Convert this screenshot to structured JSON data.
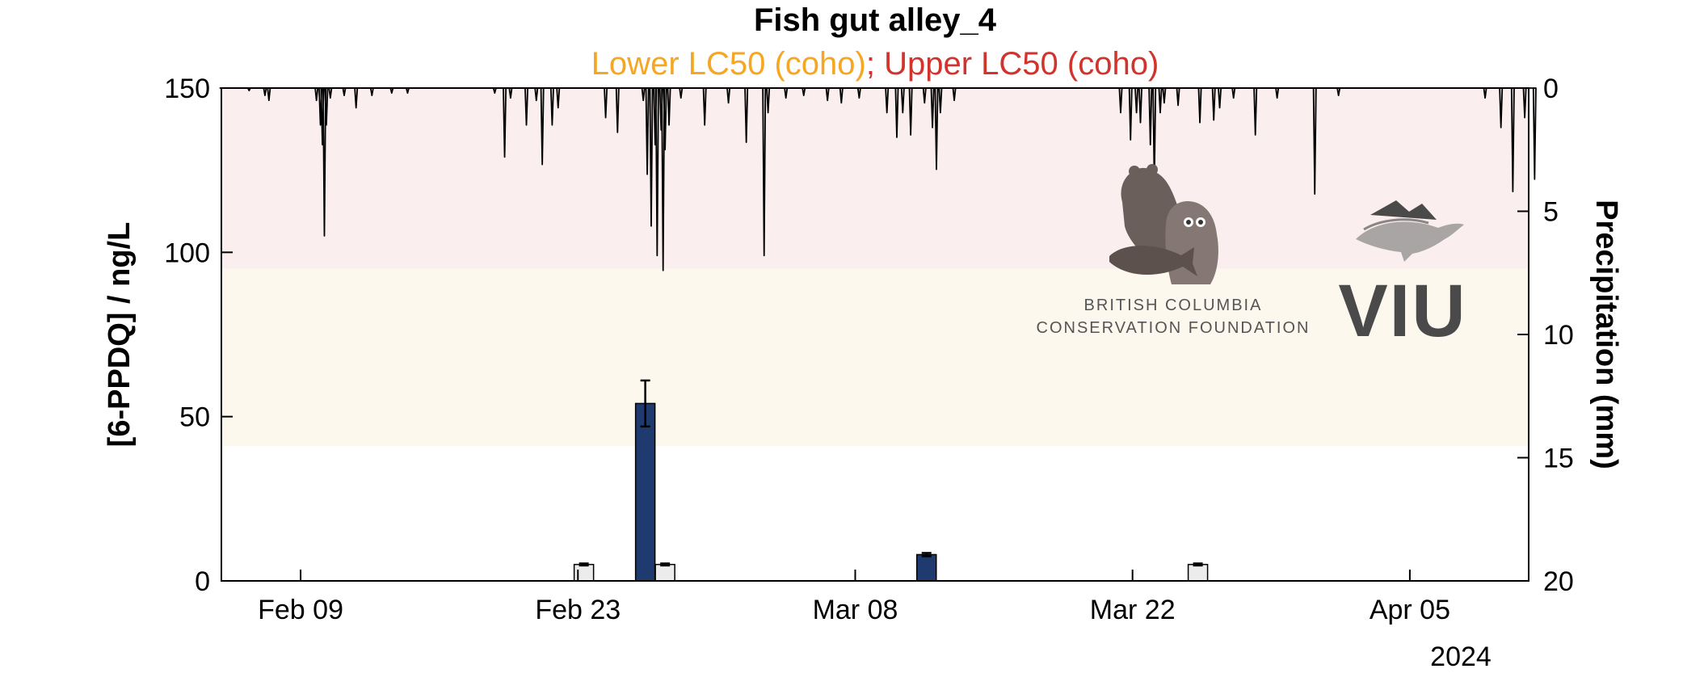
{
  "chart_data": {
    "type": "bar",
    "title": "Fish gut alley_4",
    "subtitle": {
      "lower_label": "Lower LC50 (coho)",
      "separator": "; ",
      "upper_label": "Upper LC50 (coho)",
      "lower_color": "#f5a623",
      "upper_color": "#d0342c"
    },
    "ylabel": "[6-PPDQ] / ng/L",
    "y2label": "Precipitation (mm)",
    "year_label": "2024",
    "ylim": [
      0,
      150
    ],
    "y2lim": [
      0,
      20
    ],
    "y2_reversed": true,
    "yticks": [
      "0",
      "50",
      "100",
      "150"
    ],
    "y2ticks": [
      "0",
      "5",
      "10",
      "15",
      "20"
    ],
    "x_range_days": [
      "2024-02-05",
      "2024-04-11"
    ],
    "xticks": [
      {
        "date": "2024-02-09",
        "label": "Feb 09"
      },
      {
        "date": "2024-02-23",
        "label": "Feb 23"
      },
      {
        "date": "2024-03-08",
        "label": "Mar 08"
      },
      {
        "date": "2024-03-22",
        "label": "Mar 22"
      },
      {
        "date": "2024-04-05",
        "label": "Apr 05"
      }
    ],
    "bands": [
      {
        "name": "Lower LC50 (coho)",
        "y0": 41,
        "y1": 95,
        "color": "#fdf8ee"
      },
      {
        "name": "Upper LC50 (coho)",
        "y0": 95,
        "y1": 150,
        "color": "#fbeeee"
      }
    ],
    "bars": [
      {
        "date": "2024-02-26.4",
        "value": 54,
        "error": 7,
        "color": "#1f3a6e"
      },
      {
        "date": "2024-03-11.6",
        "value": 8,
        "error": 0.5,
        "color": "#1f3a6e"
      },
      {
        "date": "2024-02-23.3",
        "value": 5,
        "error": 0.3,
        "color": "#ececec"
      },
      {
        "date": "2024-02-27.4",
        "value": 5,
        "error": 0.3,
        "color": "#ececec"
      },
      {
        "date": "2024-03-25.3",
        "value": 5,
        "error": 0.3,
        "color": "#ececec"
      }
    ],
    "precipitation_series": {
      "name": "Precipitation (mm)",
      "color": "#000000",
      "points": [
        [
          "2024-02-05.0",
          0.0
        ],
        [
          "2024-02-06.4",
          0.1
        ],
        [
          "2024-02-07.2",
          0.3
        ],
        [
          "2024-02-07.4",
          0.5
        ],
        [
          "2024-02-09.8",
          0.5
        ],
        [
          "2024-02-10.0",
          1.5
        ],
        [
          "2024-02-10.1",
          2.3
        ],
        [
          "2024-02-10.2",
          6.0
        ],
        [
          "2024-02-10.3",
          1.5
        ],
        [
          "2024-02-10.5",
          0.4
        ],
        [
          "2024-02-11.2",
          0.3
        ],
        [
          "2024-02-11.8",
          0.8
        ],
        [
          "2024-02-12.6",
          0.3
        ],
        [
          "2024-02-13.6",
          0.2
        ],
        [
          "2024-02-14.4",
          0.2
        ],
        [
          "2024-02-18.8",
          0.2
        ],
        [
          "2024-02-19.3",
          2.8
        ],
        [
          "2024-02-19.6",
          0.4
        ],
        [
          "2024-02-20.4",
          1.5
        ],
        [
          "2024-02-20.9",
          0.5
        ],
        [
          "2024-02-21.2",
          3.1
        ],
        [
          "2024-02-21.7",
          1.5
        ],
        [
          "2024-02-22.0",
          0.8
        ],
        [
          "2024-02-24.4",
          1.2
        ],
        [
          "2024-02-25.0",
          1.8
        ],
        [
          "2024-02-26.3",
          0.5
        ],
        [
          "2024-02-26.5",
          3.5
        ],
        [
          "2024-02-26.7",
          5.6
        ],
        [
          "2024-02-26.9",
          2.3
        ],
        [
          "2024-02-27.0",
          6.8
        ],
        [
          "2024-02-27.2",
          1.7
        ],
        [
          "2024-02-27.3",
          7.4
        ],
        [
          "2024-02-27.4",
          2.5
        ],
        [
          "2024-02-27.6",
          1.5
        ],
        [
          "2024-02-28.2",
          0.4
        ],
        [
          "2024-02-29.4",
          1.5
        ],
        [
          "2024-03-01.6",
          0.6
        ],
        [
          "2024-03-02.5",
          2.2
        ],
        [
          "2024-03-03.4",
          6.8
        ],
        [
          "2024-03-03.6",
          1.0
        ],
        [
          "2024-03-04.5",
          0.4
        ],
        [
          "2024-03-05.4",
          0.3
        ],
        [
          "2024-03-06.6",
          0.5
        ],
        [
          "2024-03-07.3",
          0.6
        ],
        [
          "2024-03-08.2",
          0.4
        ],
        [
          "2024-03-09.6",
          1.0
        ],
        [
          "2024-03-10.1",
          2.0
        ],
        [
          "2024-03-10.4",
          1.0
        ],
        [
          "2024-03-10.8",
          1.9
        ],
        [
          "2024-03-11.5",
          0.6
        ],
        [
          "2024-03-11.9",
          1.6
        ],
        [
          "2024-03-12.1",
          3.3
        ],
        [
          "2024-03-12.3",
          1.0
        ],
        [
          "2024-03-13.0",
          0.5
        ],
        [
          "2024-03-21.4",
          1.0
        ],
        [
          "2024-03-21.9",
          2.1
        ],
        [
          "2024-03-22.2",
          1.0
        ],
        [
          "2024-03-22.4",
          1.4
        ],
        [
          "2024-03-22.9",
          2.3
        ],
        [
          "2024-03-23.1",
          3.9
        ],
        [
          "2024-03-23.4",
          1.0
        ],
        [
          "2024-03-23.6",
          0.6
        ],
        [
          "2024-03-24.3",
          0.7
        ],
        [
          "2024-03-25.4",
          1.4
        ],
        [
          "2024-03-26.1",
          1.3
        ],
        [
          "2024-03-26.4",
          0.8
        ],
        [
          "2024-03-27.1",
          0.4
        ],
        [
          "2024-03-28.2",
          1.9
        ],
        [
          "2024-03-29.3",
          0.4
        ],
        [
          "2024-03-31.2",
          4.3
        ],
        [
          "2024-04-01.4",
          0.3
        ],
        [
          "2024-04-08.8",
          0.4
        ],
        [
          "2024-04-09.6",
          1.6
        ],
        [
          "2024-04-10.2",
          4.2
        ],
        [
          "2024-04-10.8",
          1.2
        ],
        [
          "2024-04-11.3",
          3.7
        ]
      ]
    }
  },
  "logos": {
    "bccf_line1": "BRITISH COLUMBIA",
    "bccf_line2": "CONSERVATION FOUNDATION",
    "viu": "VIU"
  }
}
